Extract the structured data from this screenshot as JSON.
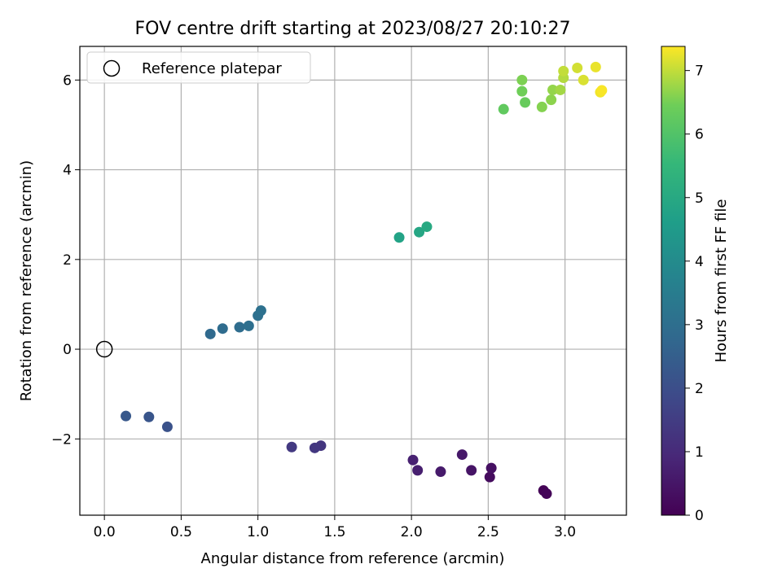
{
  "chart_data": {
    "type": "scatter",
    "title": "FOV centre drift starting at 2023/08/27 20:10:27",
    "xlabel": "Angular distance from reference (arcmin)",
    "ylabel": "Rotation from reference (arcmin)",
    "xlim": [
      -0.16,
      3.4
    ],
    "ylim": [
      -3.7,
      6.75
    ],
    "x_ticks": [
      0.0,
      0.5,
      1.0,
      1.5,
      2.0,
      2.5,
      3.0
    ],
    "x_tick_labels": [
      "0.0",
      "0.5",
      "1.0",
      "1.5",
      "2.0",
      "2.5",
      "3.0"
    ],
    "y_ticks": [
      -2,
      0,
      2,
      4,
      6
    ],
    "y_tick_labels": [
      "−2",
      "0",
      "2",
      "4",
      "6"
    ],
    "grid": true,
    "legend": {
      "position": "top-left",
      "entries": [
        "Reference platepar"
      ]
    },
    "reference_point": {
      "x": 0.0,
      "y": 0.0,
      "label": "Reference platepar",
      "marker": "open-circle",
      "color": "#000000"
    },
    "colorbar": {
      "label": "Hours from first FF file",
      "range": [
        0,
        7.38
      ],
      "colormap": "viridis",
      "ticks": [
        0,
        1,
        2,
        3,
        4,
        5,
        6,
        7
      ],
      "tick_labels": [
        "0",
        "1",
        "2",
        "3",
        "4",
        "5",
        "6",
        "7"
      ]
    },
    "series": [
      {
        "color_by": "hours",
        "points": [
          {
            "x": 2.86,
            "y": -3.15,
            "hours": 0.05
          },
          {
            "x": 2.88,
            "y": -3.22,
            "hours": 0.1
          },
          {
            "x": 2.51,
            "y": -2.85,
            "hours": 0.25
          },
          {
            "x": 2.52,
            "y": -2.65,
            "hours": 0.35
          },
          {
            "x": 2.39,
            "y": -2.7,
            "hours": 0.45
          },
          {
            "x": 2.33,
            "y": -2.35,
            "hours": 0.55
          },
          {
            "x": 2.19,
            "y": -2.73,
            "hours": 0.6
          },
          {
            "x": 2.04,
            "y": -2.7,
            "hours": 0.7
          },
          {
            "x": 2.01,
            "y": -2.47,
            "hours": 0.75
          },
          {
            "x": 1.41,
            "y": -2.15,
            "hours": 1.3
          },
          {
            "x": 1.37,
            "y": -2.2,
            "hours": 1.35
          },
          {
            "x": 1.22,
            "y": -2.18,
            "hours": 1.4
          },
          {
            "x": 0.41,
            "y": -1.73,
            "hours": 2.1
          },
          {
            "x": 0.29,
            "y": -1.51,
            "hours": 2.2
          },
          {
            "x": 0.14,
            "y": -1.49,
            "hours": 2.3
          },
          {
            "x": 0.69,
            "y": 0.34,
            "hours": 2.85
          },
          {
            "x": 0.77,
            "y": 0.46,
            "hours": 2.9
          },
          {
            "x": 0.88,
            "y": 0.49,
            "hours": 2.95
          },
          {
            "x": 0.94,
            "y": 0.52,
            "hours": 3.0
          },
          {
            "x": 1.0,
            "y": 0.75,
            "hours": 3.05
          },
          {
            "x": 1.02,
            "y": 0.86,
            "hours": 3.1
          },
          {
            "x": 1.92,
            "y": 2.49,
            "hours": 4.8
          },
          {
            "x": 2.05,
            "y": 2.61,
            "hours": 4.9
          },
          {
            "x": 2.1,
            "y": 2.73,
            "hours": 5.0
          },
          {
            "x": 2.6,
            "y": 5.35,
            "hours": 6.25
          },
          {
            "x": 2.74,
            "y": 5.5,
            "hours": 6.35
          },
          {
            "x": 2.72,
            "y": 5.75,
            "hours": 6.45
          },
          {
            "x": 2.72,
            "y": 6.0,
            "hours": 6.55
          },
          {
            "x": 2.85,
            "y": 5.4,
            "hours": 6.6
          },
          {
            "x": 2.91,
            "y": 5.56,
            "hours": 6.65
          },
          {
            "x": 2.92,
            "y": 5.78,
            "hours": 6.7
          },
          {
            "x": 2.97,
            "y": 5.78,
            "hours": 6.8
          },
          {
            "x": 2.99,
            "y": 6.05,
            "hours": 6.9
          },
          {
            "x": 2.99,
            "y": 6.2,
            "hours": 7.0
          },
          {
            "x": 3.08,
            "y": 6.27,
            "hours": 7.1
          },
          {
            "x": 3.12,
            "y": 6.0,
            "hours": 7.15
          },
          {
            "x": 3.2,
            "y": 6.29,
            "hours": 7.25
          },
          {
            "x": 3.23,
            "y": 5.73,
            "hours": 7.3
          },
          {
            "x": 3.24,
            "y": 5.77,
            "hours": 7.35
          }
        ]
      }
    ]
  }
}
